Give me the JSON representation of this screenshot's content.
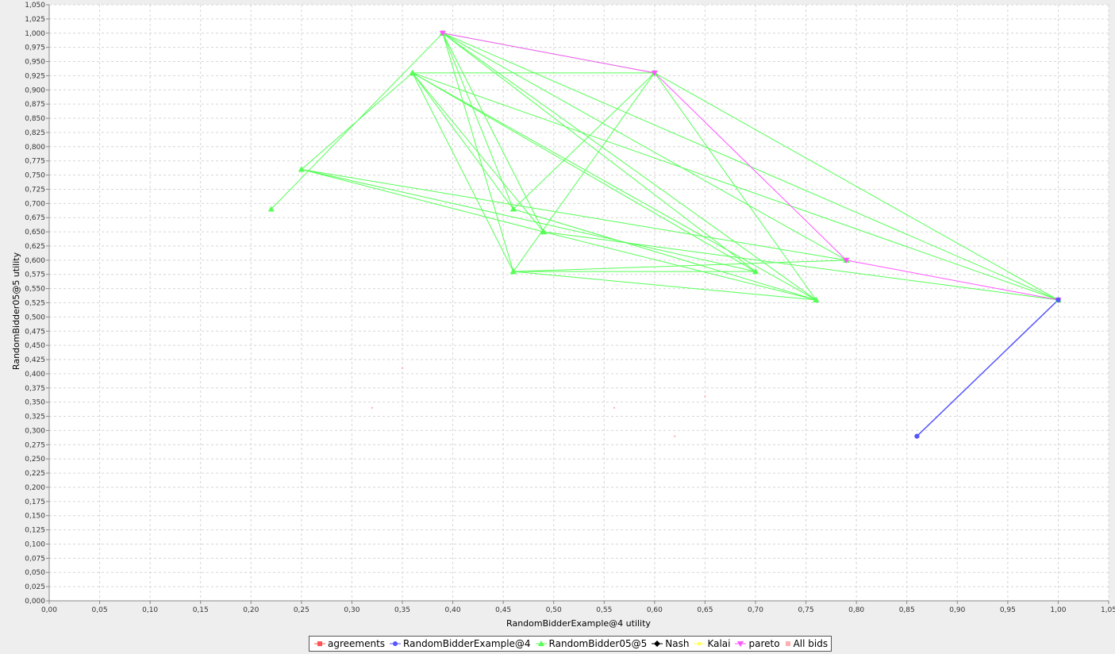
{
  "chart_data": {
    "type": "scatter",
    "xlabel": "RandomBidderExample@4 utility",
    "ylabel": "RandomBidder05@5 utility",
    "xlim": [
      0,
      1.05
    ],
    "ylim": [
      0,
      1.05
    ],
    "x_ticks": [
      "0,00",
      "0,05",
      "0,10",
      "0,15",
      "0,20",
      "0,25",
      "0,30",
      "0,35",
      "0,40",
      "0,45",
      "0,50",
      "0,55",
      "0,60",
      "0,65",
      "0,70",
      "0,75",
      "0,80",
      "0,85",
      "0,90",
      "0,95",
      "1,00",
      "1,05"
    ],
    "y_ticks": [
      "0,000",
      "0,025",
      "0,050",
      "0,075",
      "0,100",
      "0,125",
      "0,150",
      "0,175",
      "0,200",
      "0,225",
      "0,250",
      "0,275",
      "0,300",
      "0,325",
      "0,350",
      "0,375",
      "0,400",
      "0,425",
      "0,450",
      "0,475",
      "0,500",
      "0,525",
      "0,550",
      "0,575",
      "0,600",
      "0,625",
      "0,650",
      "0,675",
      "0,700",
      "0,725",
      "0,750",
      "0,775",
      "0,800",
      "0,825",
      "0,850",
      "0,875",
      "0,900",
      "0,925",
      "0,950",
      "0,975",
      "1,000",
      "1,025",
      "1,050"
    ],
    "grid": true,
    "legend_position": "bottom",
    "series": [
      {
        "name": "agreements",
        "color": "#ff5555",
        "marker": "square",
        "points": []
      },
      {
        "name": "RandomBidderExample@4",
        "color": "#5555ff",
        "marker": "circle",
        "points": [
          [
            0.86,
            0.29
          ],
          [
            1.0,
            0.53
          ],
          [
            0.86,
            0.29
          ],
          [
            1.0,
            0.53
          ],
          [
            0.86,
            0.29
          ],
          [
            1.0,
            0.53
          ]
        ]
      },
      {
        "name": "RandomBidder05@5",
        "color": "#55ff55",
        "marker": "triangle-up",
        "points": [
          [
            0.22,
            0.69
          ],
          [
            0.39,
            1.0
          ],
          [
            0.6,
            0.93
          ],
          [
            0.36,
            0.93
          ],
          [
            0.25,
            0.76
          ],
          [
            0.79,
            0.6
          ],
          [
            0.46,
            0.58
          ],
          [
            0.7,
            0.58
          ],
          [
            0.39,
            1.0
          ],
          [
            0.49,
            0.65
          ],
          [
            0.76,
            0.53
          ],
          [
            0.46,
            0.69
          ],
          [
            0.6,
            0.93
          ],
          [
            1.0,
            0.53
          ],
          [
            0.36,
            0.93
          ],
          [
            0.46,
            0.58
          ],
          [
            0.79,
            0.6
          ],
          [
            0.39,
            1.0
          ],
          [
            0.46,
            0.69
          ],
          [
            0.36,
            0.93
          ],
          [
            0.7,
            0.58
          ],
          [
            0.25,
            0.76
          ],
          [
            0.49,
            0.65
          ],
          [
            0.39,
            1.0
          ],
          [
            0.76,
            0.53
          ],
          [
            0.6,
            0.93
          ],
          [
            0.46,
            0.58
          ],
          [
            0.39,
            1.0
          ],
          [
            1.0,
            0.53
          ],
          [
            0.49,
            0.65
          ],
          [
            0.36,
            0.93
          ],
          [
            0.76,
            0.53
          ],
          [
            0.46,
            0.58
          ],
          [
            0.79,
            0.6
          ]
        ]
      },
      {
        "name": "Nash",
        "color": "#000000",
        "marker": "diamond",
        "points": []
      },
      {
        "name": "Kalai",
        "color": "#ffff55",
        "marker": "square",
        "points": []
      },
      {
        "name": "pareto",
        "color": "#ff55ff",
        "marker": "triangle-down",
        "points": [
          [
            0.39,
            1.0
          ],
          [
            0.6,
            0.93
          ],
          [
            0.79,
            0.6
          ],
          [
            1.0,
            0.53
          ]
        ]
      },
      {
        "name": "All bids",
        "color": "#ffafaf",
        "marker": "dot",
        "points": [
          [
            0.22,
            0.69
          ],
          [
            0.25,
            0.76
          ],
          [
            0.32,
            0.34
          ],
          [
            0.35,
            0.41
          ],
          [
            0.36,
            0.93
          ],
          [
            0.39,
            1.0
          ],
          [
            0.46,
            0.58
          ],
          [
            0.46,
            0.69
          ],
          [
            0.49,
            0.65
          ],
          [
            0.56,
            0.34
          ],
          [
            0.6,
            0.93
          ],
          [
            0.62,
            0.29
          ],
          [
            0.65,
            0.36
          ],
          [
            0.7,
            0.58
          ],
          [
            0.76,
            0.53
          ],
          [
            0.79,
            0.6
          ],
          [
            0.86,
            0.29
          ],
          [
            1.0,
            0.53
          ]
        ]
      }
    ]
  }
}
